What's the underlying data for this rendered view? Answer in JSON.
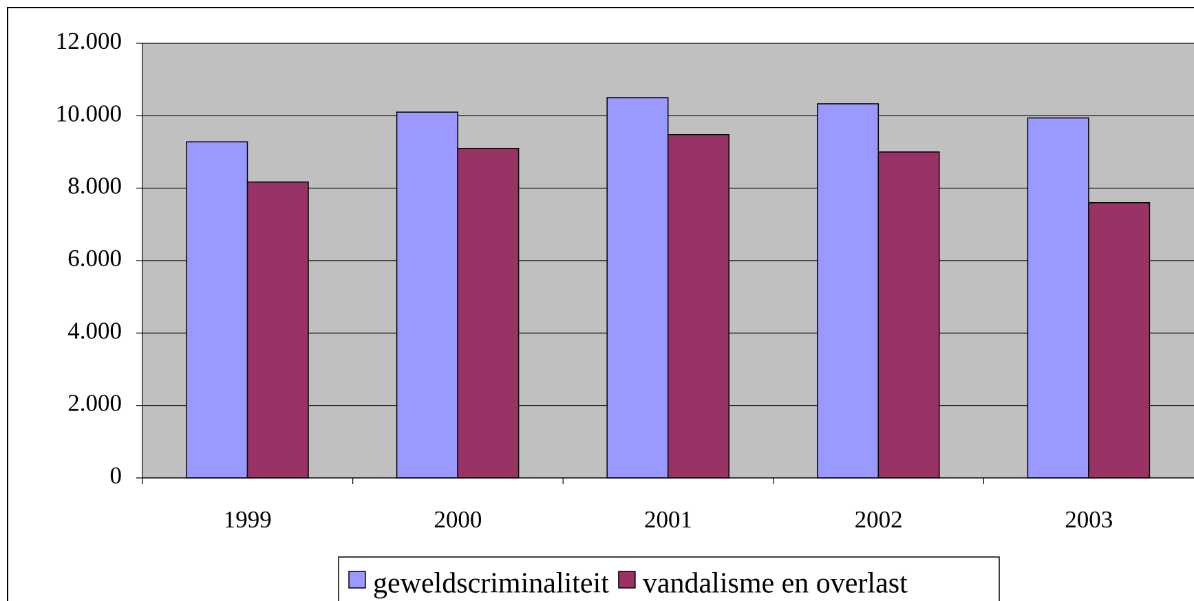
{
  "chart_data": {
    "type": "bar",
    "categories": [
      "1999",
      "2000",
      "2001",
      "2002",
      "2003"
    ],
    "series": [
      {
        "name": "geweldscriminaliteit",
        "color": "#9999ff",
        "values": [
          9280,
          10100,
          10500,
          10330,
          9940
        ]
      },
      {
        "name": "vandalisme en overlast",
        "color": "#993366",
        "values": [
          8170,
          9100,
          9480,
          9000,
          7600
        ]
      }
    ],
    "ylim": [
      0,
      12000
    ],
    "yticks": [
      0,
      {
        "value": 2000,
        "label": "2.000"
      },
      {
        "value": 4000,
        "label": "4.000"
      },
      {
        "value": 6000,
        "label": "6.000"
      },
      {
        "value": 8000,
        "label": "8.000"
      },
      {
        "value": 10000,
        "label": "10.000"
      },
      {
        "value": 12000,
        "label": "12.000"
      }
    ],
    "grid": true,
    "legend": "bottom",
    "plot_background": "#c0c0c0"
  }
}
